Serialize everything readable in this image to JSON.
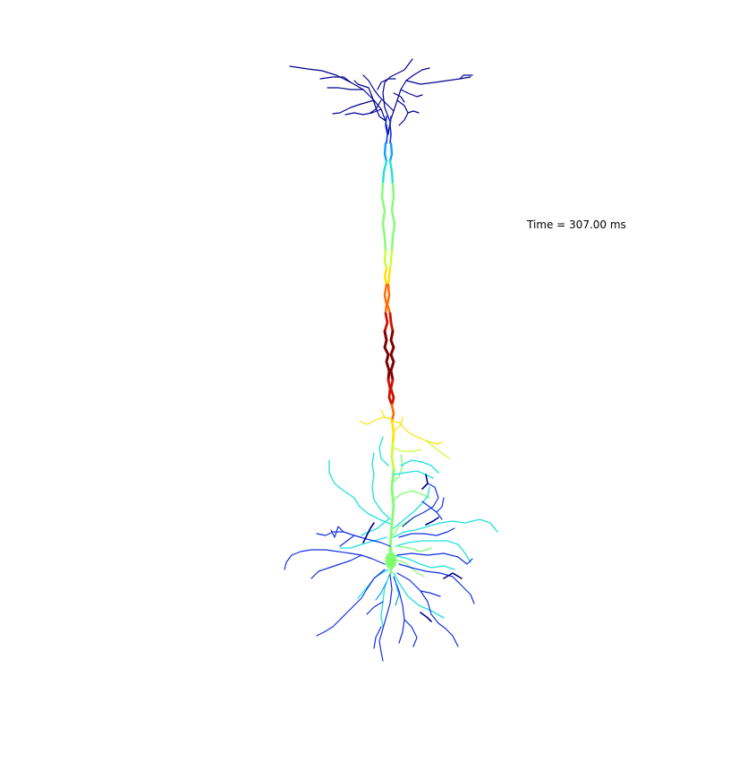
{
  "annotation": {
    "time_text": "Time = 307.00 ms"
  },
  "colormap": "jet",
  "colors": {
    "dark_red": "#800000",
    "red": "#d01000",
    "orange": "#ff6a00",
    "yellow": "#ffe000",
    "yellow_green": "#c8ff30",
    "green": "#80ff70",
    "cyan": "#20e0e0",
    "light_blue": "#10a0ff",
    "blue": "#1030e0",
    "dark_blue": "#000090"
  }
}
